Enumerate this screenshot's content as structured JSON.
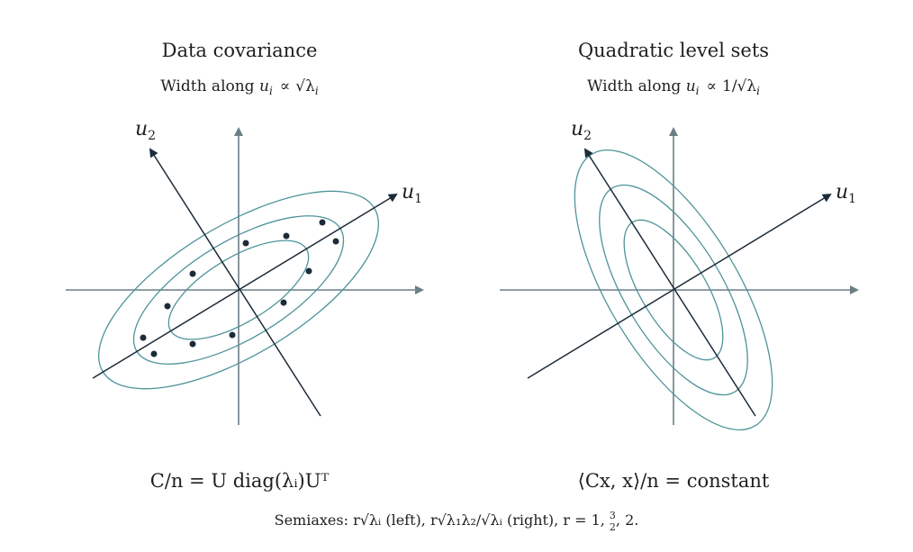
{
  "left_panel": {
    "title": "Data covariance",
    "subtitle_prefix": "Width along ",
    "subtitle_var": "u",
    "subtitle_sub": "i",
    "subtitle_rel": "∝",
    "subtitle_expr": "√λ",
    "subtitle_expr_sub": "i",
    "label_u1": "u",
    "label_u1_sub": "1",
    "label_u2": "u",
    "label_u2_sub": "2",
    "formula": "C/n = U diag(λᵢ)Uᵀ"
  },
  "right_panel": {
    "title": "Quadratic level sets",
    "subtitle_prefix": "Width along ",
    "subtitle_var": "u",
    "subtitle_sub": "i",
    "subtitle_rel": "∝",
    "subtitle_expr": "1/√λ",
    "subtitle_expr_sub": "i",
    "label_u1": "u",
    "label_u1_sub": "1",
    "label_u2": "u",
    "label_u2_sub": "2",
    "formula": "⟨Cx, x⟩/n = constant"
  },
  "caption": {
    "prefix": "Semiaxes: ",
    "left_expr": "r√λᵢ",
    "left_note": " (left), ",
    "right_expr": "r√λ₁λ₂/√λᵢ",
    "right_note": " (right), ",
    "r_values": "r = 1, ",
    "frac_num": "3",
    "frac_den": "2",
    "tail": ", 2."
  },
  "colors": {
    "axis": "#6a7f86",
    "eigen": "#1c2b38",
    "ellipse": "#4e9499",
    "dot": "#1c2b38"
  }
}
